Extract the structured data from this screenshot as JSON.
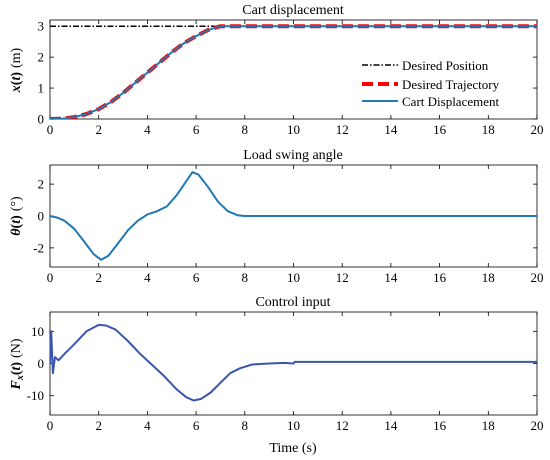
{
  "chart_data": [
    {
      "type": "line",
      "title": "Cart displacement",
      "ylabel": "x(t)  (m)",
      "xlabel": "",
      "xlim": [
        0,
        20
      ],
      "ylim": [
        0,
        3.2
      ],
      "xticks": [
        0,
        2,
        4,
        6,
        8,
        10,
        12,
        14,
        16,
        18,
        20
      ],
      "yticks": [
        0,
        1,
        2,
        3
      ],
      "legend_placement": "bottom-right",
      "series": [
        {
          "name": "Desired Position",
          "color": "#000000",
          "style": "dashdot",
          "x": [
            0,
            20
          ],
          "y": [
            3,
            3
          ]
        },
        {
          "name": "Desired Trajectory",
          "color": "#ff0000",
          "style": "dashed",
          "x": [
            0,
            0.5,
            1,
            1.5,
            2,
            2.5,
            3,
            3.5,
            4,
            4.5,
            5,
            5.5,
            6,
            6.5,
            7,
            8,
            10,
            12,
            14,
            16,
            18,
            20
          ],
          "y": [
            0,
            0.01,
            0.06,
            0.16,
            0.32,
            0.55,
            0.84,
            1.17,
            1.5,
            1.83,
            2.16,
            2.45,
            2.68,
            2.88,
            3.0,
            3,
            3,
            3,
            3,
            3,
            3,
            3
          ]
        },
        {
          "name": "Cart Displacement",
          "color": "#1f77b4",
          "style": "solid",
          "x": [
            0,
            0.5,
            1,
            1.5,
            2,
            2.5,
            3,
            3.5,
            4,
            4.5,
            5,
            5.5,
            6,
            6.5,
            7,
            8,
            10,
            12,
            14,
            16,
            18,
            20
          ],
          "y": [
            0,
            0.01,
            0.06,
            0.16,
            0.32,
            0.55,
            0.84,
            1.17,
            1.5,
            1.83,
            2.16,
            2.45,
            2.68,
            2.88,
            3.0,
            3,
            3,
            3,
            3,
            3,
            3,
            3
          ]
        }
      ]
    },
    {
      "type": "line",
      "title": "Load swing angle",
      "ylabel": "θ(t)  (°)",
      "xlabel": "",
      "xlim": [
        0,
        20
      ],
      "ylim": [
        -3.2,
        3.2
      ],
      "xticks": [
        0,
        2,
        4,
        6,
        8,
        10,
        12,
        14,
        16,
        18,
        20
      ],
      "yticks": [
        -2,
        0,
        2
      ],
      "series": [
        {
          "name": "",
          "color": "#1f77b4",
          "style": "solid",
          "x": [
            0,
            0.3,
            0.6,
            1,
            1.4,
            1.8,
            2.1,
            2.4,
            2.8,
            3.2,
            3.6,
            4,
            4.4,
            4.8,
            5.2,
            5.6,
            5.85,
            6.1,
            6.5,
            6.9,
            7.3,
            7.7,
            8,
            8.5,
            20
          ],
          "y": [
            0,
            -0.1,
            -0.3,
            -0.8,
            -1.6,
            -2.4,
            -2.75,
            -2.5,
            -1.7,
            -0.9,
            -0.3,
            0.1,
            0.3,
            0.6,
            1.3,
            2.2,
            2.75,
            2.6,
            1.8,
            0.9,
            0.3,
            0.05,
            0,
            0,
            0
          ]
        }
      ]
    },
    {
      "type": "line",
      "title": "Control input",
      "ylabel": "Fx(t)  (N)",
      "xlabel": "Time (s)",
      "xlim": [
        0,
        20
      ],
      "ylim": [
        -16,
        16
      ],
      "xticks": [
        0,
        2,
        4,
        6,
        8,
        10,
        12,
        14,
        16,
        18,
        20
      ],
      "yticks": [
        -10,
        0,
        10
      ],
      "series": [
        {
          "name": "",
          "color": "#3a55b0",
          "style": "solid",
          "x": [
            0,
            0.05,
            0.12,
            0.2,
            0.35,
            0.6,
            1,
            1.5,
            2,
            2.3,
            2.7,
            3.2,
            3.7,
            4.2,
            4.7,
            5.2,
            5.6,
            5.9,
            6.2,
            6.6,
            7,
            7.4,
            7.8,
            8.3,
            9,
            9.6,
            10,
            10.05,
            20
          ],
          "y": [
            0,
            10,
            -3,
            2,
            1,
            3,
            6,
            10,
            12,
            11.8,
            10.5,
            7,
            3,
            -0.5,
            -4,
            -8,
            -10.5,
            -11.5,
            -11,
            -9,
            -6,
            -3,
            -1.5,
            -0.3,
            0,
            0.2,
            0,
            0.5,
            0.5
          ]
        }
      ]
    }
  ]
}
